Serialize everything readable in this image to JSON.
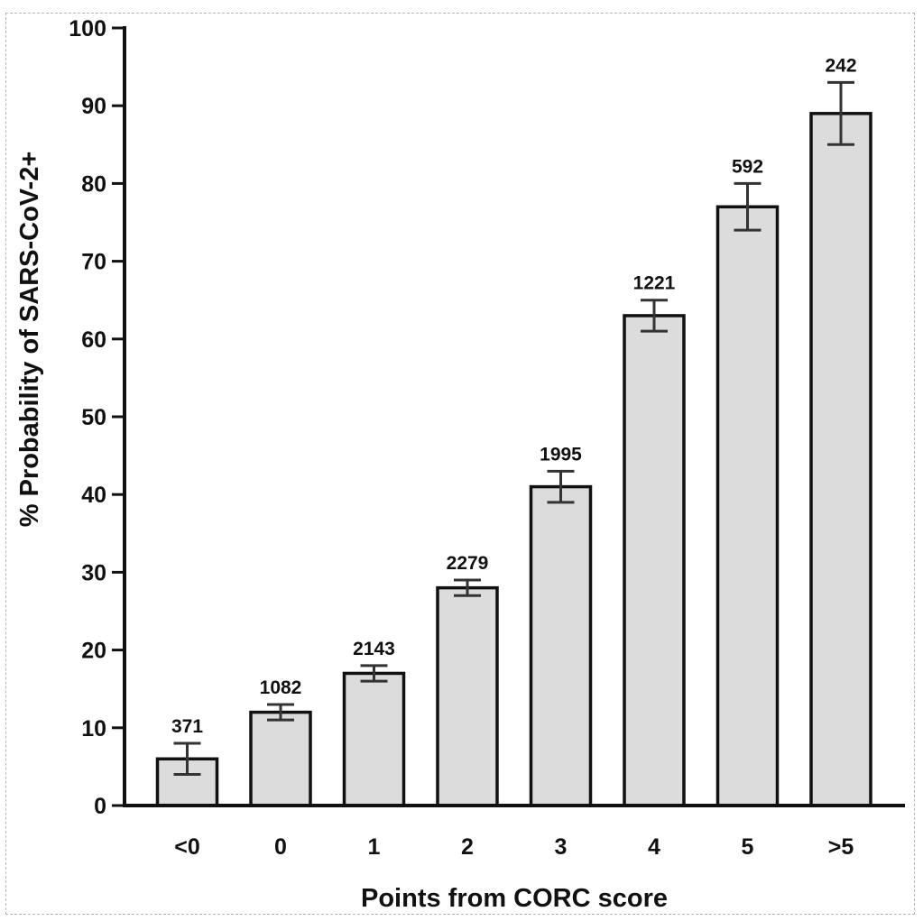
{
  "chart_data": {
    "type": "bar",
    "title": "",
    "xlabel": "Points from CORC score",
    "ylabel": "% Probability  of SARS-CoV-2+",
    "ylim": [
      0,
      100
    ],
    "yticks": [
      0,
      10,
      20,
      30,
      40,
      50,
      60,
      70,
      80,
      90,
      100
    ],
    "grid": false,
    "categories": [
      "<0",
      "0",
      "1",
      "2",
      "3",
      "4",
      "5",
      ">5"
    ],
    "values": [
      6,
      12,
      17,
      28,
      41,
      63,
      77,
      89
    ],
    "error_low": [
      4,
      11,
      16,
      27,
      39,
      61,
      74,
      85
    ],
    "error_high": [
      8,
      13,
      18,
      29,
      43,
      65,
      80,
      93
    ],
    "bar_labels": [
      "371",
      "1082",
      "2143",
      "2279",
      "1995",
      "1221",
      "592",
      "242"
    ],
    "colors": {
      "bar_fill": "#dcdcdc",
      "bar_stroke": "#111111",
      "error_bar": "#333333",
      "axis": "#111111"
    }
  }
}
